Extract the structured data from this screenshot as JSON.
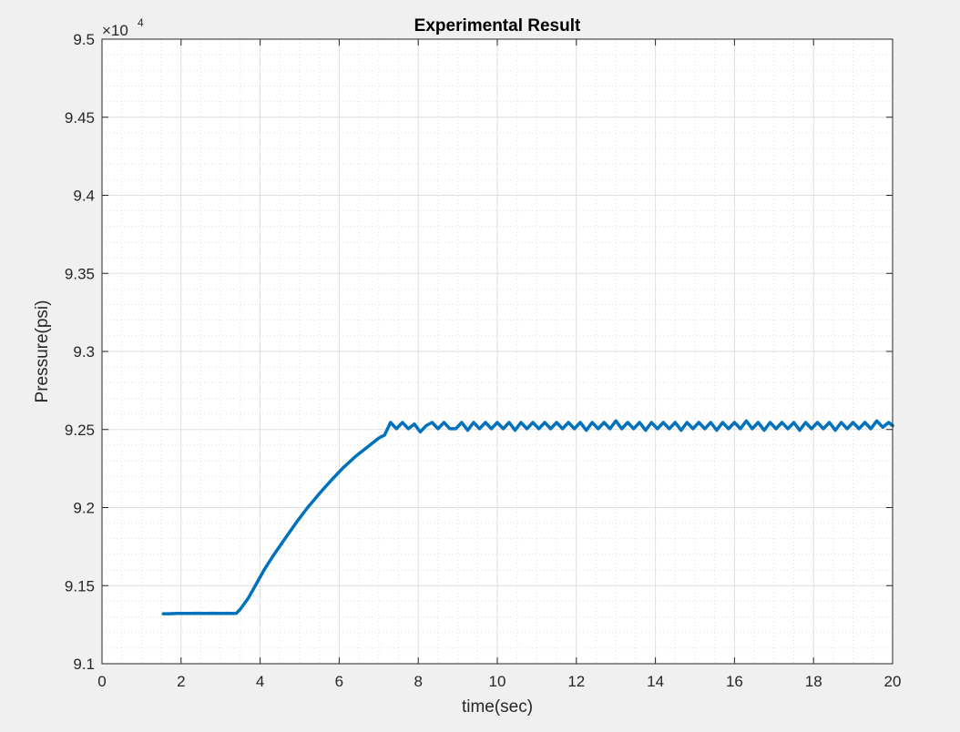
{
  "chart_data": {
    "type": "line",
    "title": "Experimental Result",
    "xlabel": "time(sec)",
    "ylabel": "Pressure(psi)",
    "xlim": [
      0,
      20
    ],
    "ylim": [
      9.1,
      9.5
    ],
    "y_scale_exponent_base": "×10",
    "y_scale_exponent_power": "4",
    "xticks": [
      "0",
      "2",
      "4",
      "6",
      "8",
      "10",
      "12",
      "14",
      "16",
      "18",
      "20"
    ],
    "yticks": [
      "9.1",
      "9.15",
      "9.2",
      "9.25",
      "9.3",
      "9.35",
      "9.4",
      "9.45",
      "9.5"
    ],
    "grid": "major and minor",
    "series": [
      {
        "name": "Pressure",
        "color": "#0072BD",
        "x": [
          1.55,
          1.7,
          1.9,
          2.0,
          2.2,
          2.4,
          2.6,
          2.8,
          3.0,
          3.2,
          3.35,
          3.4,
          3.5,
          3.7,
          3.9,
          4.1,
          4.3,
          4.6,
          4.9,
          5.2,
          5.5,
          5.8,
          6.1,
          6.4,
          6.7,
          7.0,
          7.15,
          7.3,
          7.45,
          7.6,
          7.75,
          7.9,
          8.05,
          8.2,
          8.35,
          8.5,
          8.65,
          8.8,
          8.95,
          9.1,
          9.25,
          9.4,
          9.55,
          9.7,
          9.85,
          10.0,
          10.15,
          10.3,
          10.45,
          10.6,
          10.75,
          10.9,
          11.05,
          11.2,
          11.35,
          11.5,
          11.65,
          11.8,
          11.95,
          12.1,
          12.25,
          12.4,
          12.55,
          12.7,
          12.85,
          13.0,
          13.15,
          13.3,
          13.45,
          13.6,
          13.75,
          13.9,
          14.05,
          14.2,
          14.35,
          14.5,
          14.65,
          14.8,
          14.95,
          15.1,
          15.25,
          15.4,
          15.55,
          15.7,
          15.85,
          16.0,
          16.15,
          16.3,
          16.45,
          16.6,
          16.75,
          16.9,
          17.05,
          17.2,
          17.35,
          17.5,
          17.65,
          17.8,
          17.95,
          18.1,
          18.25,
          18.4,
          18.55,
          18.7,
          18.85,
          19.0,
          19.15,
          19.3,
          19.45,
          19.6,
          19.75,
          19.9,
          20.0
        ],
        "y": [
          9.132,
          9.132,
          9.1322,
          9.1322,
          9.1322,
          9.1323,
          9.1322,
          9.1323,
          9.1322,
          9.1323,
          9.1322,
          9.1323,
          9.135,
          9.142,
          9.151,
          9.16,
          9.168,
          9.179,
          9.19,
          9.2,
          9.209,
          9.2175,
          9.2255,
          9.2325,
          9.2385,
          9.2445,
          9.2465,
          9.2545,
          9.2505,
          9.2545,
          9.2505,
          9.2535,
          9.2485,
          9.2525,
          9.2545,
          9.2505,
          9.2545,
          9.2505,
          9.2505,
          9.2545,
          9.2495,
          9.2545,
          9.2505,
          9.2545,
          9.2505,
          9.2545,
          9.2505,
          9.2545,
          9.2495,
          9.2545,
          9.2505,
          9.2545,
          9.2505,
          9.2545,
          9.2505,
          9.2545,
          9.2505,
          9.2545,
          9.2505,
          9.2545,
          9.2495,
          9.2545,
          9.2505,
          9.2545,
          9.2505,
          9.2555,
          9.2505,
          9.2545,
          9.2505,
          9.2545,
          9.2495,
          9.2545,
          9.2505,
          9.2545,
          9.2505,
          9.2545,
          9.2495,
          9.2545,
          9.2505,
          9.2545,
          9.2505,
          9.2545,
          9.2495,
          9.2545,
          9.2505,
          9.2545,
          9.2505,
          9.2555,
          9.2505,
          9.2545,
          9.2495,
          9.2545,
          9.2505,
          9.2545,
          9.2505,
          9.2545,
          9.2495,
          9.2545,
          9.2505,
          9.2545,
          9.2505,
          9.2545,
          9.2495,
          9.2545,
          9.2505,
          9.2545,
          9.2505,
          9.2545,
          9.2505,
          9.2555,
          9.2515,
          9.2545,
          9.2525
        ]
      }
    ]
  },
  "colors": {
    "figure_background": "#f0f0f0",
    "axes_background": "#ffffff",
    "axis_color": "#262626",
    "grid_color": "#dfdfdf",
    "line_color": "#0072BD"
  }
}
